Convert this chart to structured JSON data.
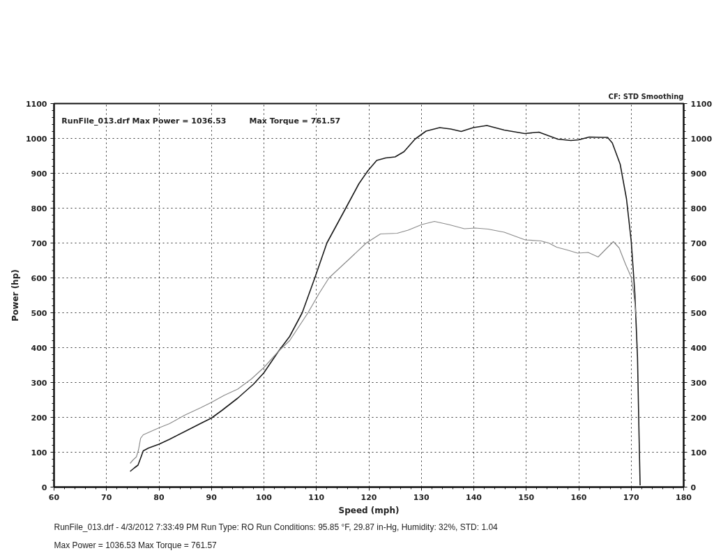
{
  "chart_data": {
    "type": "line",
    "xlabel": "Speed (mph)",
    "ylabel": "Power (hp)",
    "annotations": [
      "RunFile_013.drf Max Power = 1036.53",
      "Max Torque = 761.57",
      "CF: STD Smoothing",
      "RunFile_013.drf - 4/3/2012 7:33:49 PM  Run Type: RO  Run Conditions: 95.85 °F, 29.87 in-Hg,  Humidity:  32%, STD: 1.04",
      "Max Power = 1036.53  Max Torque = 761.57"
    ],
    "xlim": [
      60,
      180
    ],
    "xticks": [
      60,
      70,
      80,
      90,
      100,
      110,
      120,
      130,
      140,
      150,
      160,
      170,
      180
    ],
    "ylim": [
      0,
      1100
    ],
    "yticks": [
      0,
      100,
      200,
      300,
      400,
      500,
      600,
      700,
      800,
      900,
      1000,
      1100
    ],
    "y2lim": [
      0,
      1100
    ],
    "y2ticks": [
      0,
      100,
      200,
      300,
      400,
      500,
      600,
      700,
      800,
      900,
      1000,
      1100
    ],
    "grid": true,
    "series": [
      {
        "color": "#1a1a1a",
        "x": [
          74.5,
          75.3,
          76.0,
          76.5,
          77.0,
          78.0,
          80,
          82,
          85,
          88,
          90,
          92,
          95,
          98,
          100,
          102.8,
          104.9,
          107.3,
          109.7,
          112,
          115.6,
          118.1,
          119.8,
          121.5,
          123.2,
          125,
          126.7,
          128.8,
          130.9,
          133.5,
          135.6,
          137.6,
          139.9,
          142.5,
          145.8,
          149.7,
          152.4,
          156,
          158.5,
          160,
          162,
          164.7,
          165.5,
          166.4,
          167.9,
          169.1,
          170,
          170.7,
          171.2,
          171.5,
          171.7
        ],
        "values": [
          45,
          55,
          63,
          83,
          104,
          112,
          123,
          137,
          160,
          183,
          198,
          220,
          255,
          295,
          328,
          390,
          432,
          500,
          600,
          700,
          800,
          870,
          907,
          937,
          944,
          947,
          962,
          998,
          1021,
          1031,
          1027,
          1020,
          1031,
          1037,
          1024,
          1014,
          1018,
          998,
          994,
          996,
          1004,
          1003,
          1003,
          987,
          926,
          827,
          706,
          555,
          373,
          146,
          5
        ]
      },
      {
        "color": "#8a8a8a",
        "x": [
          74.5,
          75,
          75.7,
          76.1,
          76.5,
          77,
          78.5,
          80,
          82,
          85,
          88,
          90,
          92.4,
          95,
          97.6,
          100,
          102.8,
          104.9,
          108.4,
          110.5,
          112.4,
          116.4,
          119.5,
          122.2,
          125.4,
          127.5,
          130.1,
          132.5,
          135.2,
          138.2,
          140.3,
          142.7,
          145.8,
          149.8,
          152.8,
          154.3,
          155.8,
          157.8,
          159.8,
          161.8,
          163.7,
          165.2,
          166.6,
          167.7,
          168.9,
          170,
          170.5,
          171
        ],
        "values": [
          68,
          77,
          87,
          107,
          140,
          150,
          160,
          170,
          182,
          207,
          228,
          243,
          263,
          281,
          310,
          343,
          390,
          420,
          500,
          555,
          600,
          656,
          700,
          726,
          728,
          737,
          753,
          762,
          753,
          741,
          743,
          740,
          731,
          709,
          706,
          700,
          688,
          680,
          671,
          673,
          660,
          683,
          704,
          686,
          640,
          602,
          553,
          485
        ]
      }
    ]
  }
}
